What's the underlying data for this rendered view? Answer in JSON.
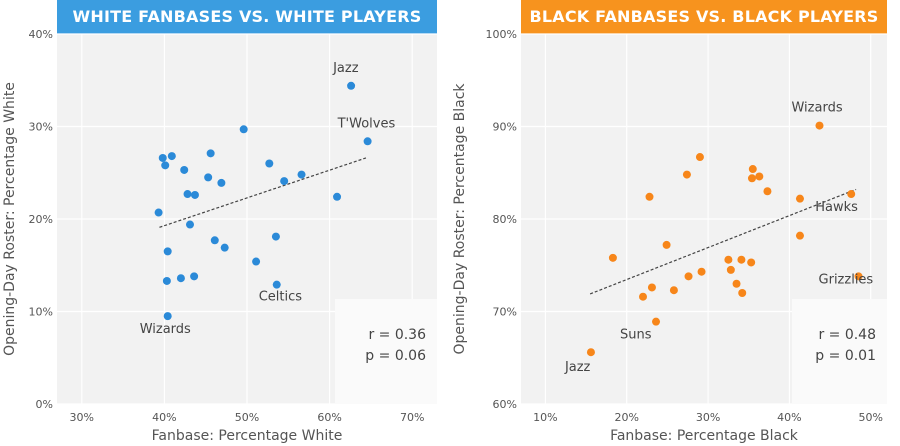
{
  "chart_data": [
    {
      "type": "scatter",
      "title": "WHITE FANBASES VS. WHITE PLAYERS",
      "title_color": "#3b9de0",
      "point_color": "#2b8ad8",
      "xlabel": "Fanbase: Percentage White",
      "ylabel": "Opening-Day Roster: Percentage White",
      "xlim": [
        27,
        73
      ],
      "ylim": [
        0,
        40
      ],
      "x_ticks": [
        30,
        40,
        50,
        60,
        70
      ],
      "y_ticks": [
        0,
        10,
        20,
        30,
        40
      ],
      "x_tick_labels": [
        "30%",
        "40%",
        "50%",
        "60%",
        "70%"
      ],
      "y_tick_labels": [
        "0%",
        "10%",
        "20%",
        "30%",
        "40%"
      ],
      "grid": true,
      "trendline": {
        "x": [
          39.4,
          64.4
        ],
        "y": [
          19.1,
          26.6
        ]
      },
      "stats": {
        "r": "r = 0.36",
        "p": "p = 0.06"
      },
      "points": [
        {
          "x": 62.6,
          "y": 34.4
        },
        {
          "x": 64.6,
          "y": 28.4
        },
        {
          "x": 49.6,
          "y": 29.7
        },
        {
          "x": 39.8,
          "y": 26.6
        },
        {
          "x": 40.9,
          "y": 26.8
        },
        {
          "x": 40.1,
          "y": 25.8
        },
        {
          "x": 45.6,
          "y": 27.1
        },
        {
          "x": 42.4,
          "y": 25.3
        },
        {
          "x": 45.3,
          "y": 24.5
        },
        {
          "x": 46.9,
          "y": 23.9
        },
        {
          "x": 52.7,
          "y": 26.0
        },
        {
          "x": 56.6,
          "y": 24.8
        },
        {
          "x": 54.5,
          "y": 24.1
        },
        {
          "x": 42.8,
          "y": 22.7
        },
        {
          "x": 43.7,
          "y": 22.6
        },
        {
          "x": 60.9,
          "y": 22.4
        },
        {
          "x": 39.3,
          "y": 20.7
        },
        {
          "x": 43.1,
          "y": 19.4
        },
        {
          "x": 46.1,
          "y": 17.7
        },
        {
          "x": 47.3,
          "y": 16.9
        },
        {
          "x": 40.4,
          "y": 16.5
        },
        {
          "x": 53.5,
          "y": 18.1
        },
        {
          "x": 51.1,
          "y": 15.4
        },
        {
          "x": 42.0,
          "y": 13.6
        },
        {
          "x": 43.6,
          "y": 13.8
        },
        {
          "x": 40.3,
          "y": 13.3
        },
        {
          "x": 53.6,
          "y": 12.9
        },
        {
          "x": 40.4,
          "y": 9.5
        }
      ],
      "annotations": [
        {
          "text": "Jazz",
          "x": 62.6,
          "y": 34.4
        },
        {
          "text": "T'Wolves",
          "x": 64.6,
          "y": 28.4
        },
        {
          "text": "Celtics",
          "x": 53.6,
          "y": 12.9
        },
        {
          "text": "Wizards",
          "x": 40.4,
          "y": 9.5
        }
      ]
    },
    {
      "type": "scatter",
      "title": "BLACK FANBASES VS. BLACK PLAYERS",
      "title_color": "#f7931e",
      "point_color": "#f7861a",
      "xlabel": "Fanbase: Percentage Black",
      "ylabel": "Opening-Day Roster: Percentage Black",
      "xlim": [
        7,
        52
      ],
      "ylim": [
        60,
        100
      ],
      "x_ticks": [
        10,
        20,
        30,
        40,
        50
      ],
      "y_ticks": [
        60,
        70,
        80,
        90,
        100
      ],
      "x_tick_labels": [
        "10%",
        "20%",
        "30%",
        "40%",
        "50%"
      ],
      "y_tick_labels": [
        "60%",
        "70%",
        "80%",
        "90%",
        "100%"
      ],
      "grid": true,
      "trendline": {
        "x": [
          15.5,
          48.2
        ],
        "y": [
          71.9,
          83.2
        ]
      },
      "stats": {
        "r": "r = 0.48",
        "p": "p = 0.01"
      },
      "points": [
        {
          "x": 43.7,
          "y": 90.1
        },
        {
          "x": 29.0,
          "y": 86.7
        },
        {
          "x": 35.5,
          "y": 85.4
        },
        {
          "x": 36.3,
          "y": 84.6
        },
        {
          "x": 35.4,
          "y": 84.4
        },
        {
          "x": 27.4,
          "y": 84.8
        },
        {
          "x": 37.3,
          "y": 83.0
        },
        {
          "x": 47.6,
          "y": 82.7
        },
        {
          "x": 22.8,
          "y": 82.4
        },
        {
          "x": 41.3,
          "y": 82.2
        },
        {
          "x": 41.3,
          "y": 78.2
        },
        {
          "x": 24.9,
          "y": 77.2
        },
        {
          "x": 18.3,
          "y": 75.8
        },
        {
          "x": 32.5,
          "y": 75.6
        },
        {
          "x": 34.1,
          "y": 75.6
        },
        {
          "x": 35.3,
          "y": 75.3
        },
        {
          "x": 32.8,
          "y": 74.5
        },
        {
          "x": 29.2,
          "y": 74.3
        },
        {
          "x": 27.6,
          "y": 73.8
        },
        {
          "x": 48.5,
          "y": 73.8
        },
        {
          "x": 33.5,
          "y": 73.0
        },
        {
          "x": 23.1,
          "y": 72.6
        },
        {
          "x": 25.8,
          "y": 72.3
        },
        {
          "x": 34.2,
          "y": 72.0
        },
        {
          "x": 22.0,
          "y": 71.6
        },
        {
          "x": 23.6,
          "y": 68.9
        },
        {
          "x": 15.6,
          "y": 65.6
        }
      ],
      "annotations": [
        {
          "text": "Wizards",
          "x": 43.7,
          "y": 90.1
        },
        {
          "text": "Hawks",
          "x": 47.6,
          "y": 82.7
        },
        {
          "text": "Grizzlies",
          "x": 48.5,
          "y": 73.8
        },
        {
          "text": "Suns",
          "x": 23.6,
          "y": 68.9
        },
        {
          "text": "Jazz",
          "x": 15.6,
          "y": 65.6
        }
      ]
    }
  ]
}
